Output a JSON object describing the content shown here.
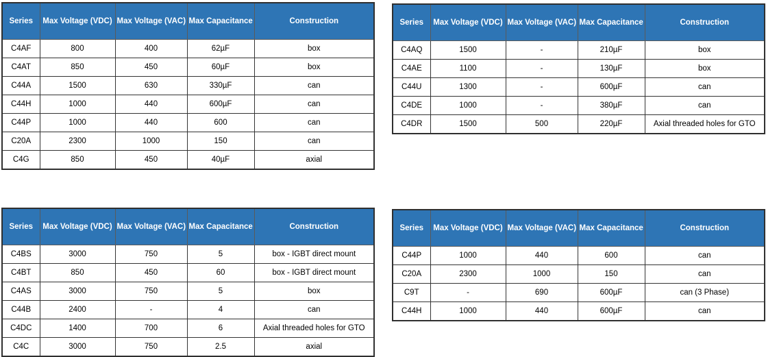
{
  "colors": {
    "header_bg": "#2E75B5",
    "header_text": "#FFFFFF",
    "body_text": "#000000",
    "border": "#333333",
    "row_bg": "#FFFFFF",
    "page_bg": "#FFFFFF"
  },
  "columns": [
    "Series",
    "Max Voltage (VDC)",
    "Max Voltage (VAC)",
    "Max Capacitance",
    "Construction"
  ],
  "tables": [
    {
      "name": "capacitor-table-top-left",
      "rows": [
        [
          "C4AF",
          "800",
          "400",
          "62µF",
          "box"
        ],
        [
          "C4AT",
          "850",
          "450",
          "60µF",
          "box"
        ],
        [
          "C44A",
          "1500",
          "630",
          "330µF",
          "can"
        ],
        [
          "C44H",
          "1000",
          "440",
          "600µF",
          "can"
        ],
        [
          "C44P",
          "1000",
          "440",
          "600",
          "can"
        ],
        [
          "C20A",
          "2300",
          "1000",
          "150",
          "can"
        ],
        [
          "C4G",
          "850",
          "450",
          "40µF",
          "axial"
        ]
      ]
    },
    {
      "name": "capacitor-table-top-right",
      "rows": [
        [
          "C4AQ",
          "1500",
          "-",
          "210µF",
          "box"
        ],
        [
          "C4AE",
          "1100",
          "-",
          "130µF",
          "box"
        ],
        [
          "C44U",
          "1300",
          "-",
          "600µF",
          "can"
        ],
        [
          "C4DE",
          "1000",
          "-",
          "380µF",
          "can"
        ],
        [
          "C4DR",
          "1500",
          "500",
          "220µF",
          "Axial threaded holes for GTO"
        ]
      ]
    },
    {
      "name": "capacitor-table-bottom-left",
      "rows": [
        [
          "C4BS",
          "3000",
          "750",
          "5",
          "box - IGBT direct mount"
        ],
        [
          "C4BT",
          "850",
          "450",
          "60",
          "box - IGBT direct mount"
        ],
        [
          "C4AS",
          "3000",
          "750",
          "5",
          "box"
        ],
        [
          "C44B",
          "2400",
          "-",
          "4",
          "can"
        ],
        [
          "C4DC",
          "1400",
          "700",
          "6",
          "Axial threaded holes for GTO"
        ],
        [
          "C4C",
          "3000",
          "750",
          "2.5",
          "axial"
        ]
      ]
    },
    {
      "name": "capacitor-table-bottom-right",
      "rows": [
        [
          "C44P",
          "1000",
          "440",
          "600",
          "can"
        ],
        [
          "C20A",
          "2300",
          "1000",
          "150",
          "can"
        ],
        [
          "C9T",
          "-",
          "690",
          "600µF",
          "can (3 Phase)"
        ],
        [
          "C44H",
          "1000",
          "440",
          "600µF",
          "can"
        ]
      ]
    }
  ]
}
